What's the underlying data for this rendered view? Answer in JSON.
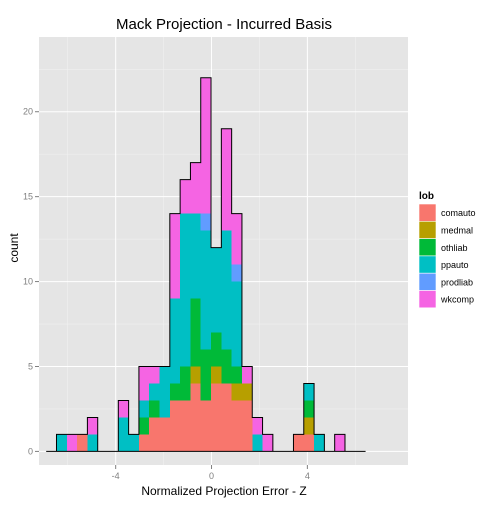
{
  "chart_data": {
    "type": "bar",
    "stacked": true,
    "title": "Mack Projection - Incurred Basis",
    "xlabel": "Normalized Projection Error - Z",
    "ylabel": "count",
    "xlim": [
      -7.2,
      8.2
    ],
    "ylim": [
      -0.8,
      24.4
    ],
    "x_ticks": [
      -4,
      0,
      4
    ],
    "x_tick_labels": [
      "-4",
      "0",
      "4"
    ],
    "y_ticks": [
      0,
      5,
      10,
      15,
      20
    ],
    "y_tick_labels": [
      "0",
      "5",
      "10",
      "15",
      "20"
    ],
    "bin_width": 0.43,
    "bin_start": -6.9,
    "bin_count": 31,
    "grid": true,
    "legend": {
      "title": "lob",
      "position": "right",
      "entries": [
        "comauto",
        "medmal",
        "othliab",
        "ppauto",
        "prodliab",
        "wkcomp"
      ]
    },
    "series_colors": {
      "comauto": "#F8766D",
      "medmal": "#B79F00",
      "othliab": "#00BA38",
      "ppauto": "#00BFC4",
      "prodliab": "#619CFF",
      "wkcomp": "#F564E3"
    },
    "series": [
      {
        "name": "comauto",
        "values": [
          0,
          0,
          0,
          1,
          0,
          0,
          0,
          0,
          0,
          1,
          2,
          2,
          3,
          3,
          4,
          3,
          4,
          4,
          3,
          3,
          0,
          0,
          0,
          0,
          1,
          1,
          0,
          0,
          0,
          0,
          0
        ]
      },
      {
        "name": "medmal",
        "values": [
          0,
          0,
          0,
          0,
          0,
          0,
          0,
          0,
          0,
          0,
          0,
          0,
          0,
          0,
          1,
          0,
          1,
          0,
          1,
          1,
          0,
          0,
          0,
          0,
          0,
          1,
          0,
          0,
          0,
          0,
          0
        ]
      },
      {
        "name": "othliab",
        "values": [
          0,
          0,
          0,
          0,
          0,
          0,
          0,
          0,
          0,
          1,
          1,
          0,
          1,
          2,
          4,
          3,
          2,
          2,
          1,
          0,
          0,
          0,
          0,
          0,
          0,
          1,
          0,
          0,
          0,
          0,
          0
        ]
      },
      {
        "name": "ppauto",
        "values": [
          0,
          1,
          0,
          0,
          1,
          0,
          0,
          2,
          1,
          1,
          1,
          3,
          5,
          9,
          5,
          7,
          5,
          7,
          5,
          0,
          1,
          0,
          0,
          0,
          0,
          1,
          1,
          0,
          0,
          0,
          0
        ]
      },
      {
        "name": "prodliab",
        "values": [
          0,
          0,
          0,
          0,
          0,
          0,
          0,
          0,
          0,
          0,
          0,
          0,
          0,
          0,
          0,
          1,
          0,
          0,
          1,
          0,
          0,
          0,
          0,
          0,
          0,
          0,
          0,
          0,
          0,
          0,
          0
        ]
      },
      {
        "name": "wkcomp",
        "values": [
          0,
          0,
          1,
          0,
          1,
          0,
          0,
          1,
          0,
          2,
          1,
          0,
          5,
          2,
          3,
          8,
          0,
          6,
          3,
          1,
          1,
          1,
          0,
          0,
          0,
          0,
          0,
          0,
          1,
          0,
          0
        ]
      }
    ]
  }
}
